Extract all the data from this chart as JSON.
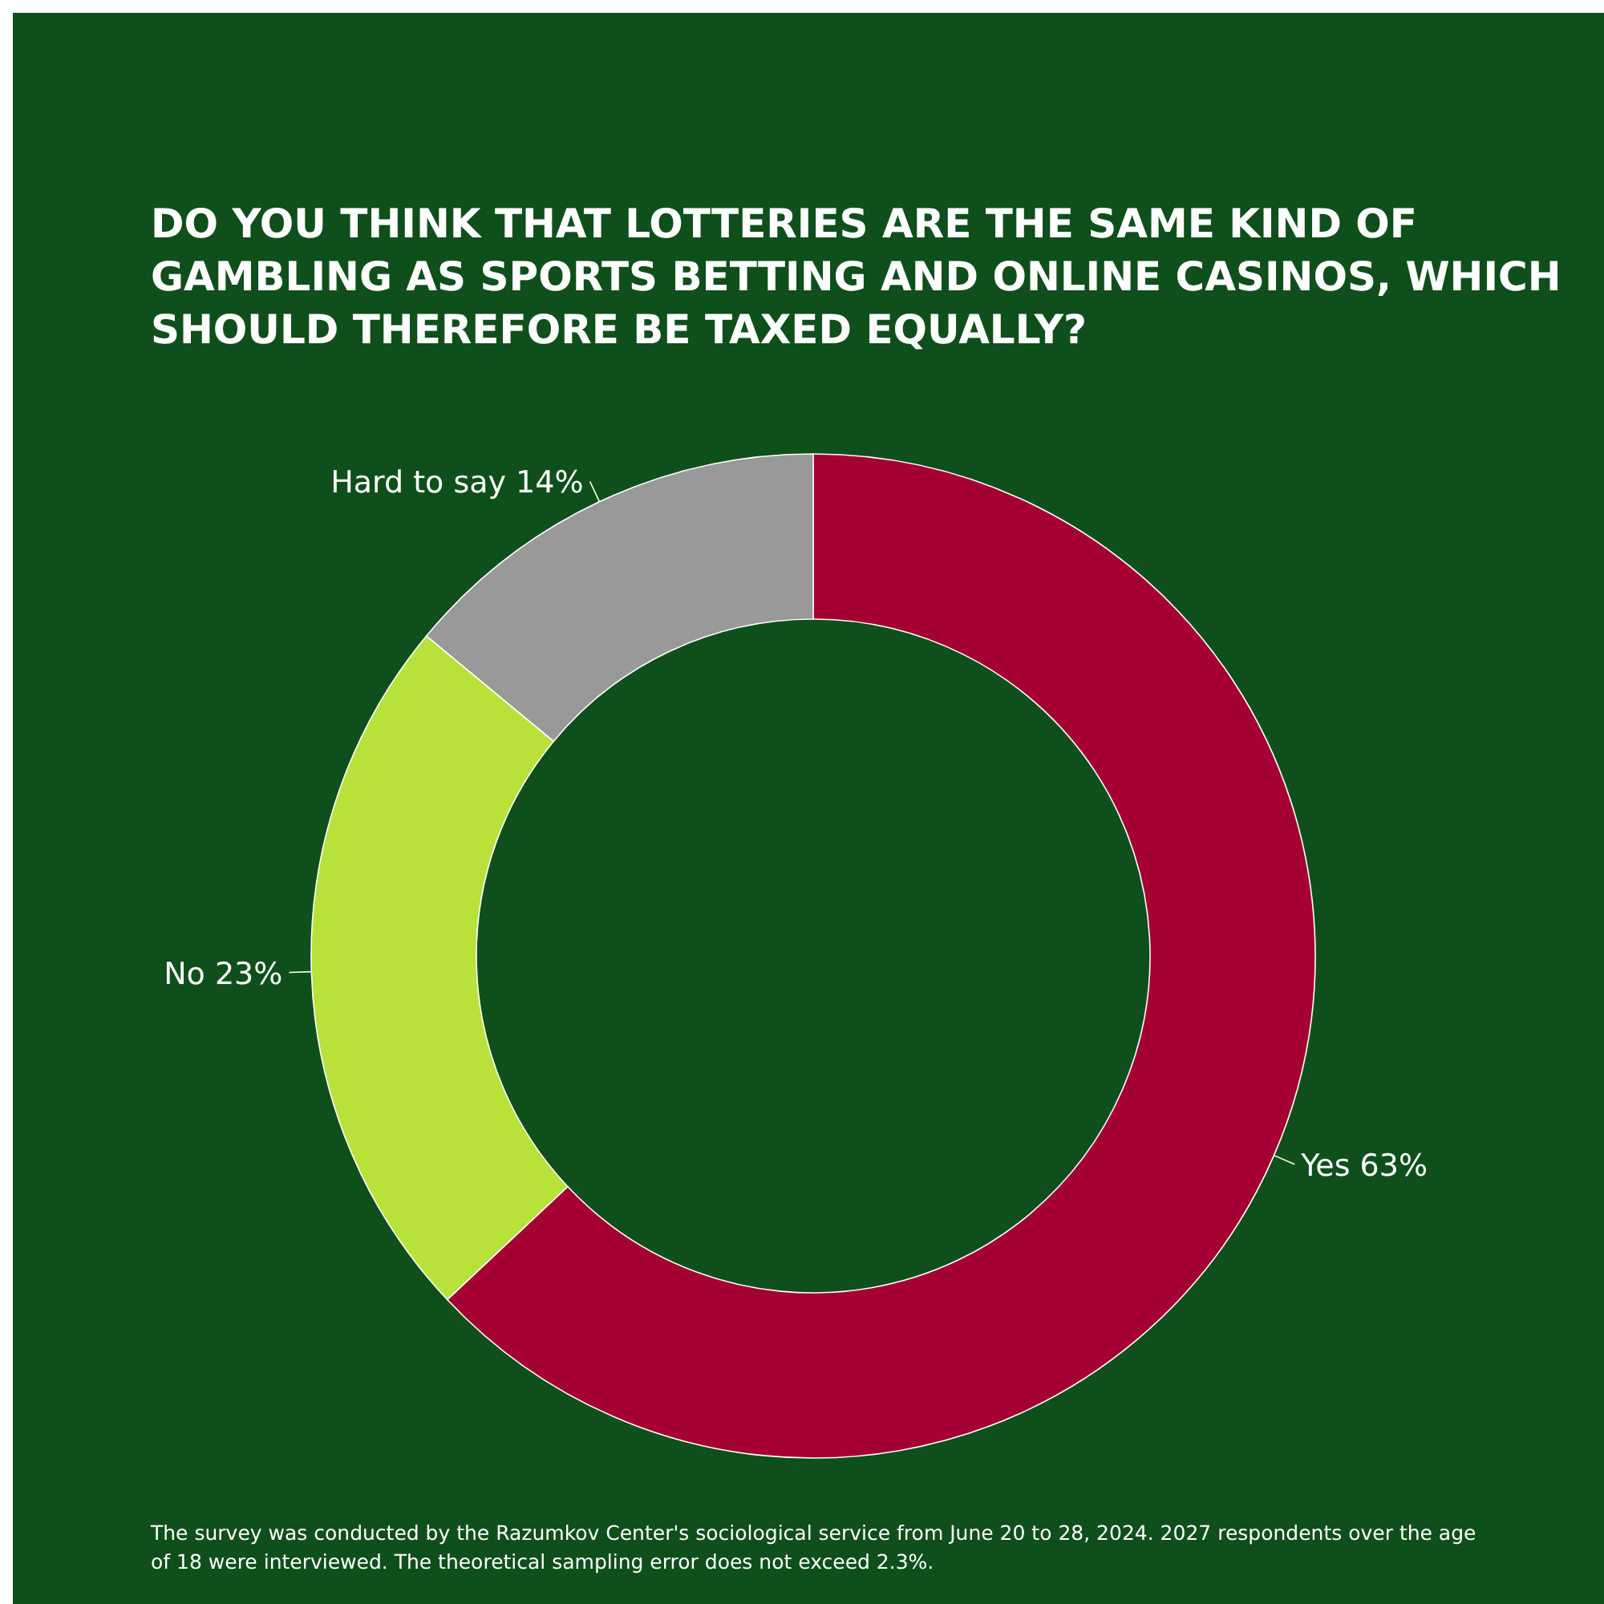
{
  "chart_data": {
    "type": "donut",
    "title": "DO YOU THINK THAT LOTTERIES ARE THE SAME KIND OF GAMBLING AS SPORTS BETTING AND ONLINE CASINOS, WHICH SHOULD THEREFORE BE TAXED EQUALLY?",
    "categories": [
      "Yes",
      "No",
      "Hard to say"
    ],
    "values": [
      63,
      23,
      14
    ],
    "value_labels": [
      "63%",
      "23%",
      "14%"
    ],
    "colors": [
      "#a50034",
      "#b8e23a",
      "#999999"
    ],
    "annotations": [
      "The survey was conducted by the Razumkov Center's sociological service from June 20 to 28, 2024. 2027 respondents over the age of 18 were interviewed. The theoretical sampling error does not exceed 2.3%."
    ]
  }
}
